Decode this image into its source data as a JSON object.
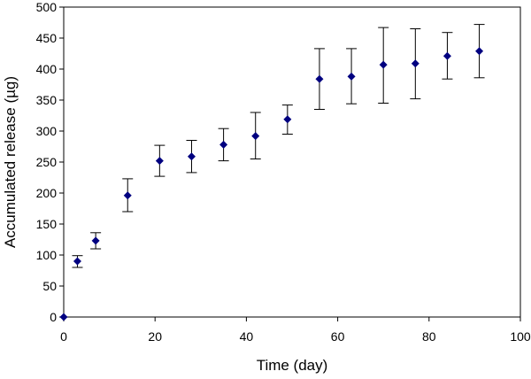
{
  "chart_data": {
    "type": "scatter",
    "title": "",
    "xlabel": "Time (day)",
    "ylabel": "Accumulated release (µg)",
    "xlim": [
      0,
      100
    ],
    "ylim": [
      0,
      500
    ],
    "x_ticks": [
      0,
      20,
      40,
      60,
      80,
      100
    ],
    "y_ticks": [
      0,
      50,
      100,
      150,
      200,
      250,
      300,
      350,
      400,
      450,
      500
    ],
    "grid": false,
    "legend": "none",
    "marker": "diamond",
    "marker_color": "#000080",
    "series": [
      {
        "points": [
          {
            "x": 0,
            "y": 0,
            "low": 0,
            "high": 0
          },
          {
            "x": 3,
            "y": 90,
            "low": 80,
            "high": 99
          },
          {
            "x": 7,
            "y": 123,
            "low": 110,
            "high": 136
          },
          {
            "x": 14,
            "y": 196,
            "low": 170,
            "high": 223
          },
          {
            "x": 21,
            "y": 252,
            "low": 227,
            "high": 277
          },
          {
            "x": 28,
            "y": 259,
            "low": 233,
            "high": 285
          },
          {
            "x": 35,
            "y": 278,
            "low": 252,
            "high": 304
          },
          {
            "x": 42,
            "y": 292,
            "low": 255,
            "high": 330
          },
          {
            "x": 49,
            "y": 319,
            "low": 295,
            "high": 342
          },
          {
            "x": 56,
            "y": 384,
            "low": 335,
            "high": 433
          },
          {
            "x": 63,
            "y": 388,
            "low": 344,
            "high": 433
          },
          {
            "x": 70,
            "y": 407,
            "low": 345,
            "high": 467
          },
          {
            "x": 77,
            "y": 409,
            "low": 352,
            "high": 465
          },
          {
            "x": 84,
            "y": 421,
            "low": 384,
            "high": 459
          },
          {
            "x": 91,
            "y": 429,
            "low": 386,
            "high": 472
          }
        ]
      }
    ]
  }
}
